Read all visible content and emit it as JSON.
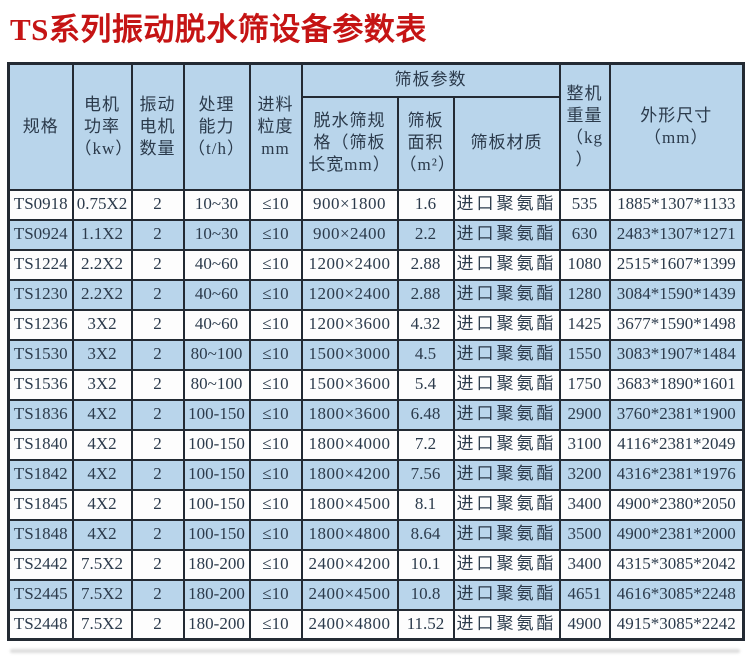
{
  "title": "TS系列振动脱水筛设备参数表",
  "colors": {
    "title_red": "#c51414",
    "row_and_header_blue": "#b9d5eb",
    "row_white": "#fdfdfd",
    "border_dark": "#232a33",
    "text": "#2b3a4b"
  },
  "table": {
    "headers": {
      "spec": "规格",
      "motor_power": "电机\n功率\n（kw）",
      "motor_qty": "振动\n电机\n数量",
      "capacity": "处理\n能力\n（t/h）",
      "feed_size": "进料\n粒度\nmm",
      "screen_group": "筛板参数",
      "screen_size": "脱水筛规\n格（筛板\n长宽mm）",
      "screen_area": "筛板\n面积\n（m²）",
      "screen_material": "筛板材质",
      "weight": "整机\n重量\n（kg\n）",
      "dimensions": "外形尺寸\n（mm）"
    },
    "rows": [
      [
        "TS0918",
        "0.75X2",
        "2",
        "10~30",
        "≤10",
        "900×1800",
        "1.6",
        "进口聚氨酯",
        "535",
        "1885*1307*1133"
      ],
      [
        "TS0924",
        "1.1X2",
        "2",
        "10~30",
        "≤10",
        "900×2400",
        "2.2",
        "进口聚氨酯",
        "630",
        "2483*1307*1271"
      ],
      [
        "TS1224",
        "2.2X2",
        "2",
        "40~60",
        "≤10",
        "1200×2400",
        "2.88",
        "进口聚氨酯",
        "1080",
        "2515*1607*1399"
      ],
      [
        "TS1230",
        "2.2X2",
        "2",
        "40~60",
        "≤10",
        "1200×2400",
        "2.88",
        "进口聚氨酯",
        "1280",
        "3084*1590*1439"
      ],
      [
        "TS1236",
        "3X2",
        "2",
        "40~60",
        "≤10",
        "1200×3600",
        "4.32",
        "进口聚氨酯",
        "1425",
        "3677*1590*1498"
      ],
      [
        "TS1530",
        "3X2",
        "2",
        "80~100",
        "≤10",
        "1500×3000",
        "4.5",
        "进口聚氨酯",
        "1550",
        "3083*1907*1484"
      ],
      [
        "TS1536",
        "3X2",
        "2",
        "80~100",
        "≤10",
        "1500×3600",
        "5.4",
        "进口聚氨酯",
        "1750",
        "3683*1890*1601"
      ],
      [
        "TS1836",
        "4X2",
        "2",
        "100-150",
        "≤10",
        "1800×3600",
        "6.48",
        "进口聚氨酯",
        "2900",
        "3760*2381*1900"
      ],
      [
        "TS1840",
        "4X2",
        "2",
        "100-150",
        "≤10",
        "1800×4000",
        "7.2",
        "进口聚氨酯",
        "3100",
        "4116*2381*2049"
      ],
      [
        "TS1842",
        "4X2",
        "2",
        "100-150",
        "≤10",
        "1800×4200",
        "7.56",
        "进口聚氨酯",
        "3200",
        "4316*2381*1976"
      ],
      [
        "TS1845",
        "4X2",
        "2",
        "100-150",
        "≤10",
        "1800×4500",
        "8.1",
        "进口聚氨酯",
        "3400",
        "4900*2380*2050"
      ],
      [
        "TS1848",
        "4X2",
        "2",
        "100-150",
        "≤10",
        "1800×4800",
        "8.64",
        "进口聚氨酯",
        "3500",
        "4900*2381*2000"
      ],
      [
        "TS2442",
        "7.5X2",
        "2",
        "180-200",
        "≤10",
        "2400×4200",
        "10.1",
        "进口聚氨酯",
        "3400",
        "4315*3085*2042"
      ],
      [
        "TS2445",
        "7.5X2",
        "2",
        "180-200",
        "≤10",
        "2400×4500",
        "10.8",
        "进口聚氨酯",
        "4651",
        "4616*3085*2248"
      ],
      [
        "TS2448",
        "7.5X2",
        "2",
        "180-200",
        "≤10",
        "2400×4800",
        "11.52",
        "进口聚氨酯",
        "4900",
        "4915*3085*2242"
      ]
    ]
  }
}
